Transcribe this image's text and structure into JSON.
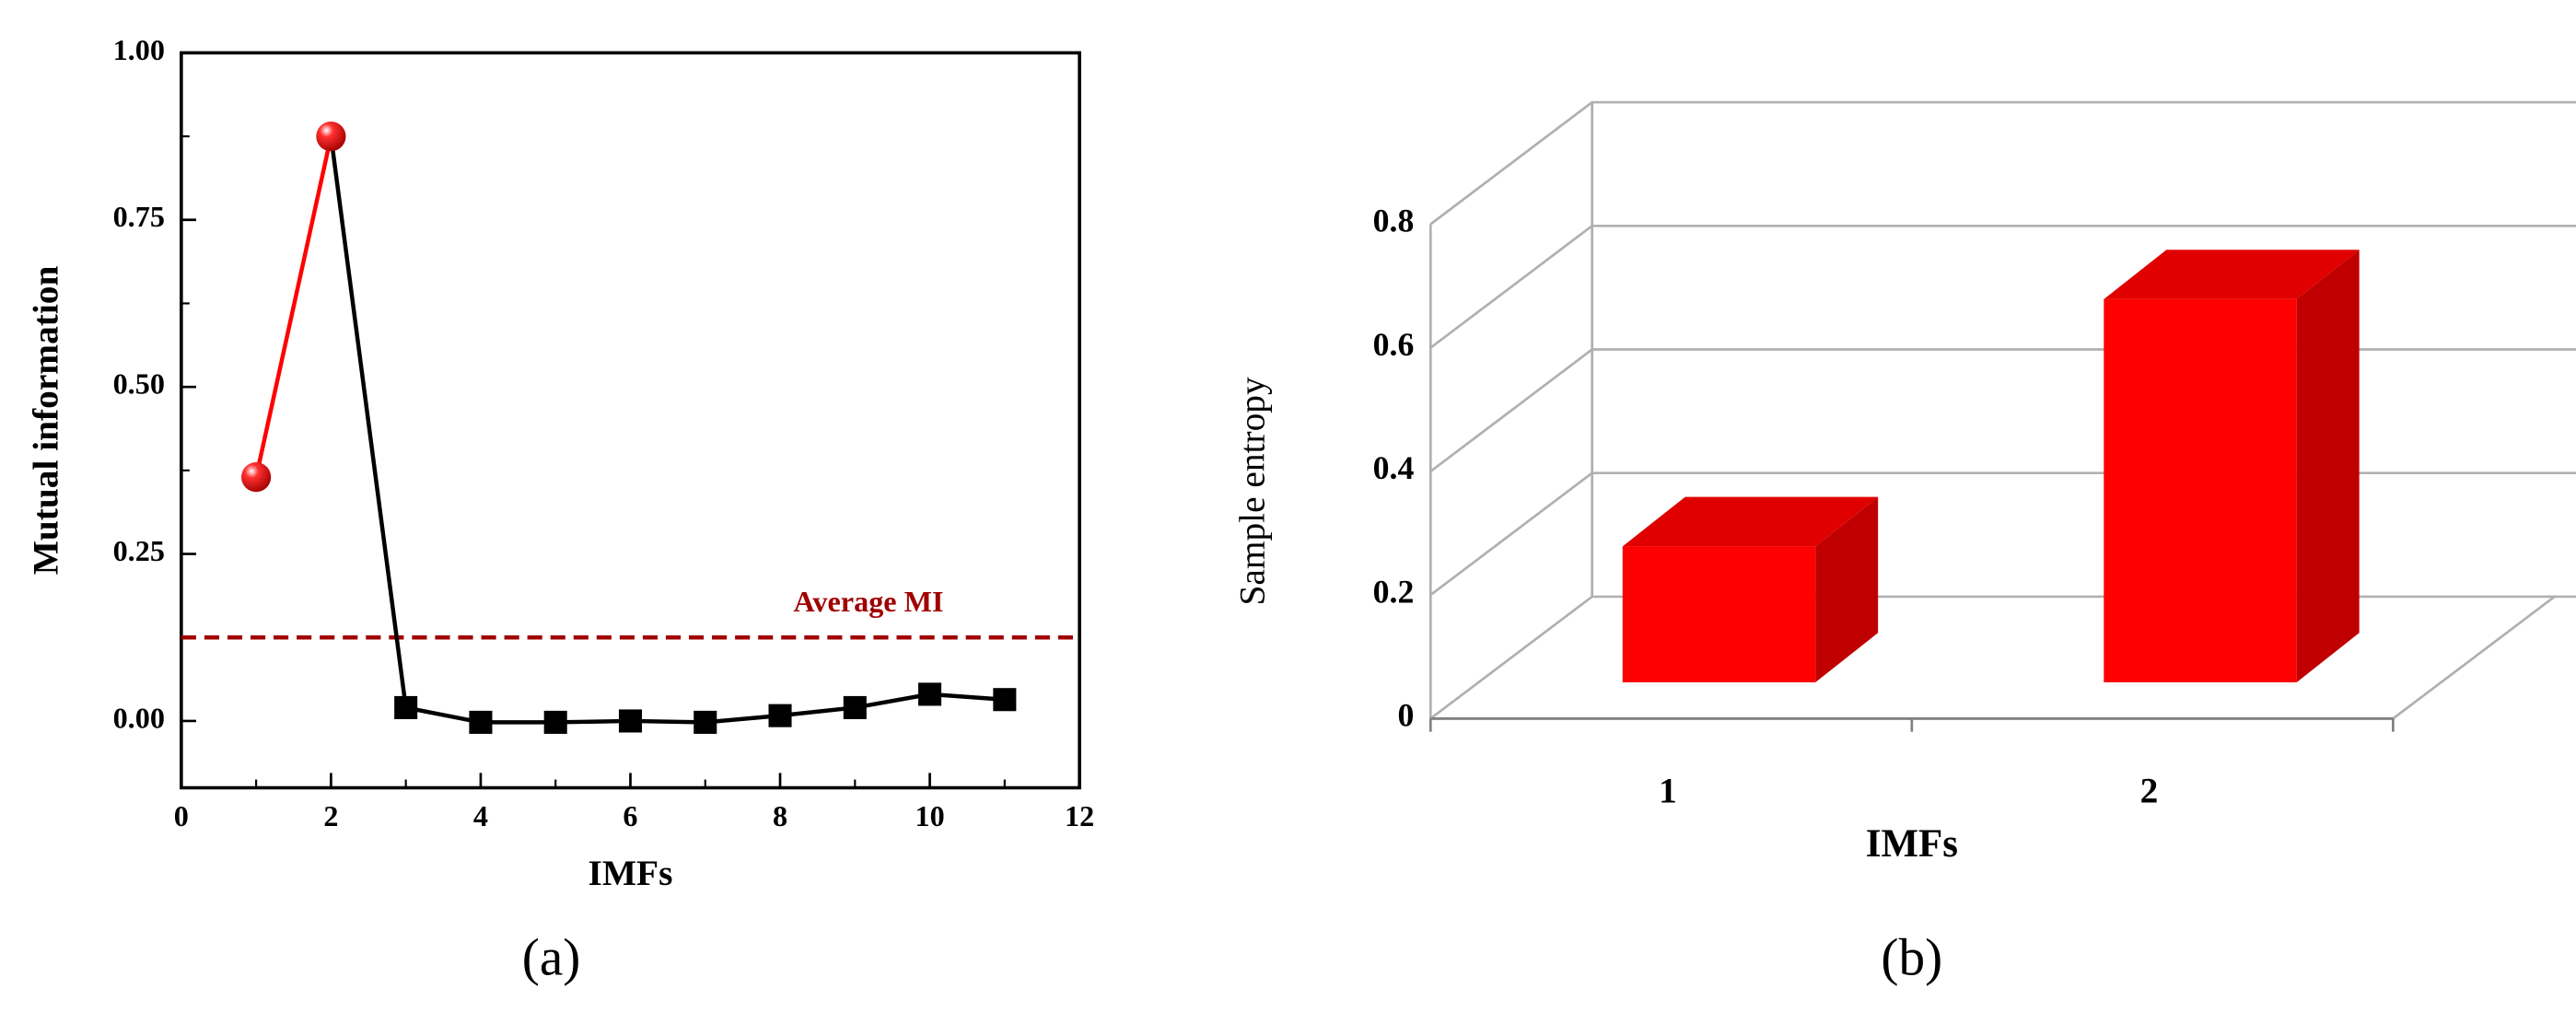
{
  "chart_data": [
    {
      "type": "line",
      "caption": "(a)",
      "x_label": "IMFs",
      "y_label": "Mutual information",
      "xlim": [
        0,
        12
      ],
      "xticks": [
        0,
        2,
        4,
        6,
        8,
        10,
        12
      ],
      "ylim": [
        -0.1,
        1.0
      ],
      "yticks": [
        {
          "value": 0,
          "label": "0.00"
        },
        {
          "value": 0.25,
          "label": "0.25"
        },
        {
          "value": 0.5,
          "label": "0.50"
        },
        {
          "value": 0.75,
          "label": "0.75"
        },
        {
          "value": 1.0,
          "label": "1.00"
        }
      ],
      "series": [
        {
          "color": "#ff0000",
          "marker": "sphere",
          "x": [
            1,
            2
          ],
          "values": [
            0.365,
            0.875
          ]
        },
        {
          "color": "#000000",
          "marker": "square",
          "x": [
            2,
            3,
            4,
            5,
            6,
            7,
            8,
            9,
            10,
            11
          ],
          "values": [
            0.875,
            0.02,
            -0.002,
            -0.002,
            0.0,
            -0.002,
            0.008,
            0.02,
            0.04,
            0.032
          ]
        }
      ],
      "reference_line": {
        "text": "Average MI",
        "value": 0.125,
        "color": "#a00000"
      }
    },
    {
      "type": "bar3d",
      "caption": "(b)",
      "x_label": "IMFs",
      "y_label": "Sample entropy",
      "categories": [
        "1",
        "2"
      ],
      "values": [
        0.22,
        0.62
      ],
      "color": "#ff0000",
      "ylim": [
        0,
        0.8
      ],
      "yticks": [
        0,
        0.2,
        0.4,
        0.6,
        0.8
      ]
    }
  ]
}
